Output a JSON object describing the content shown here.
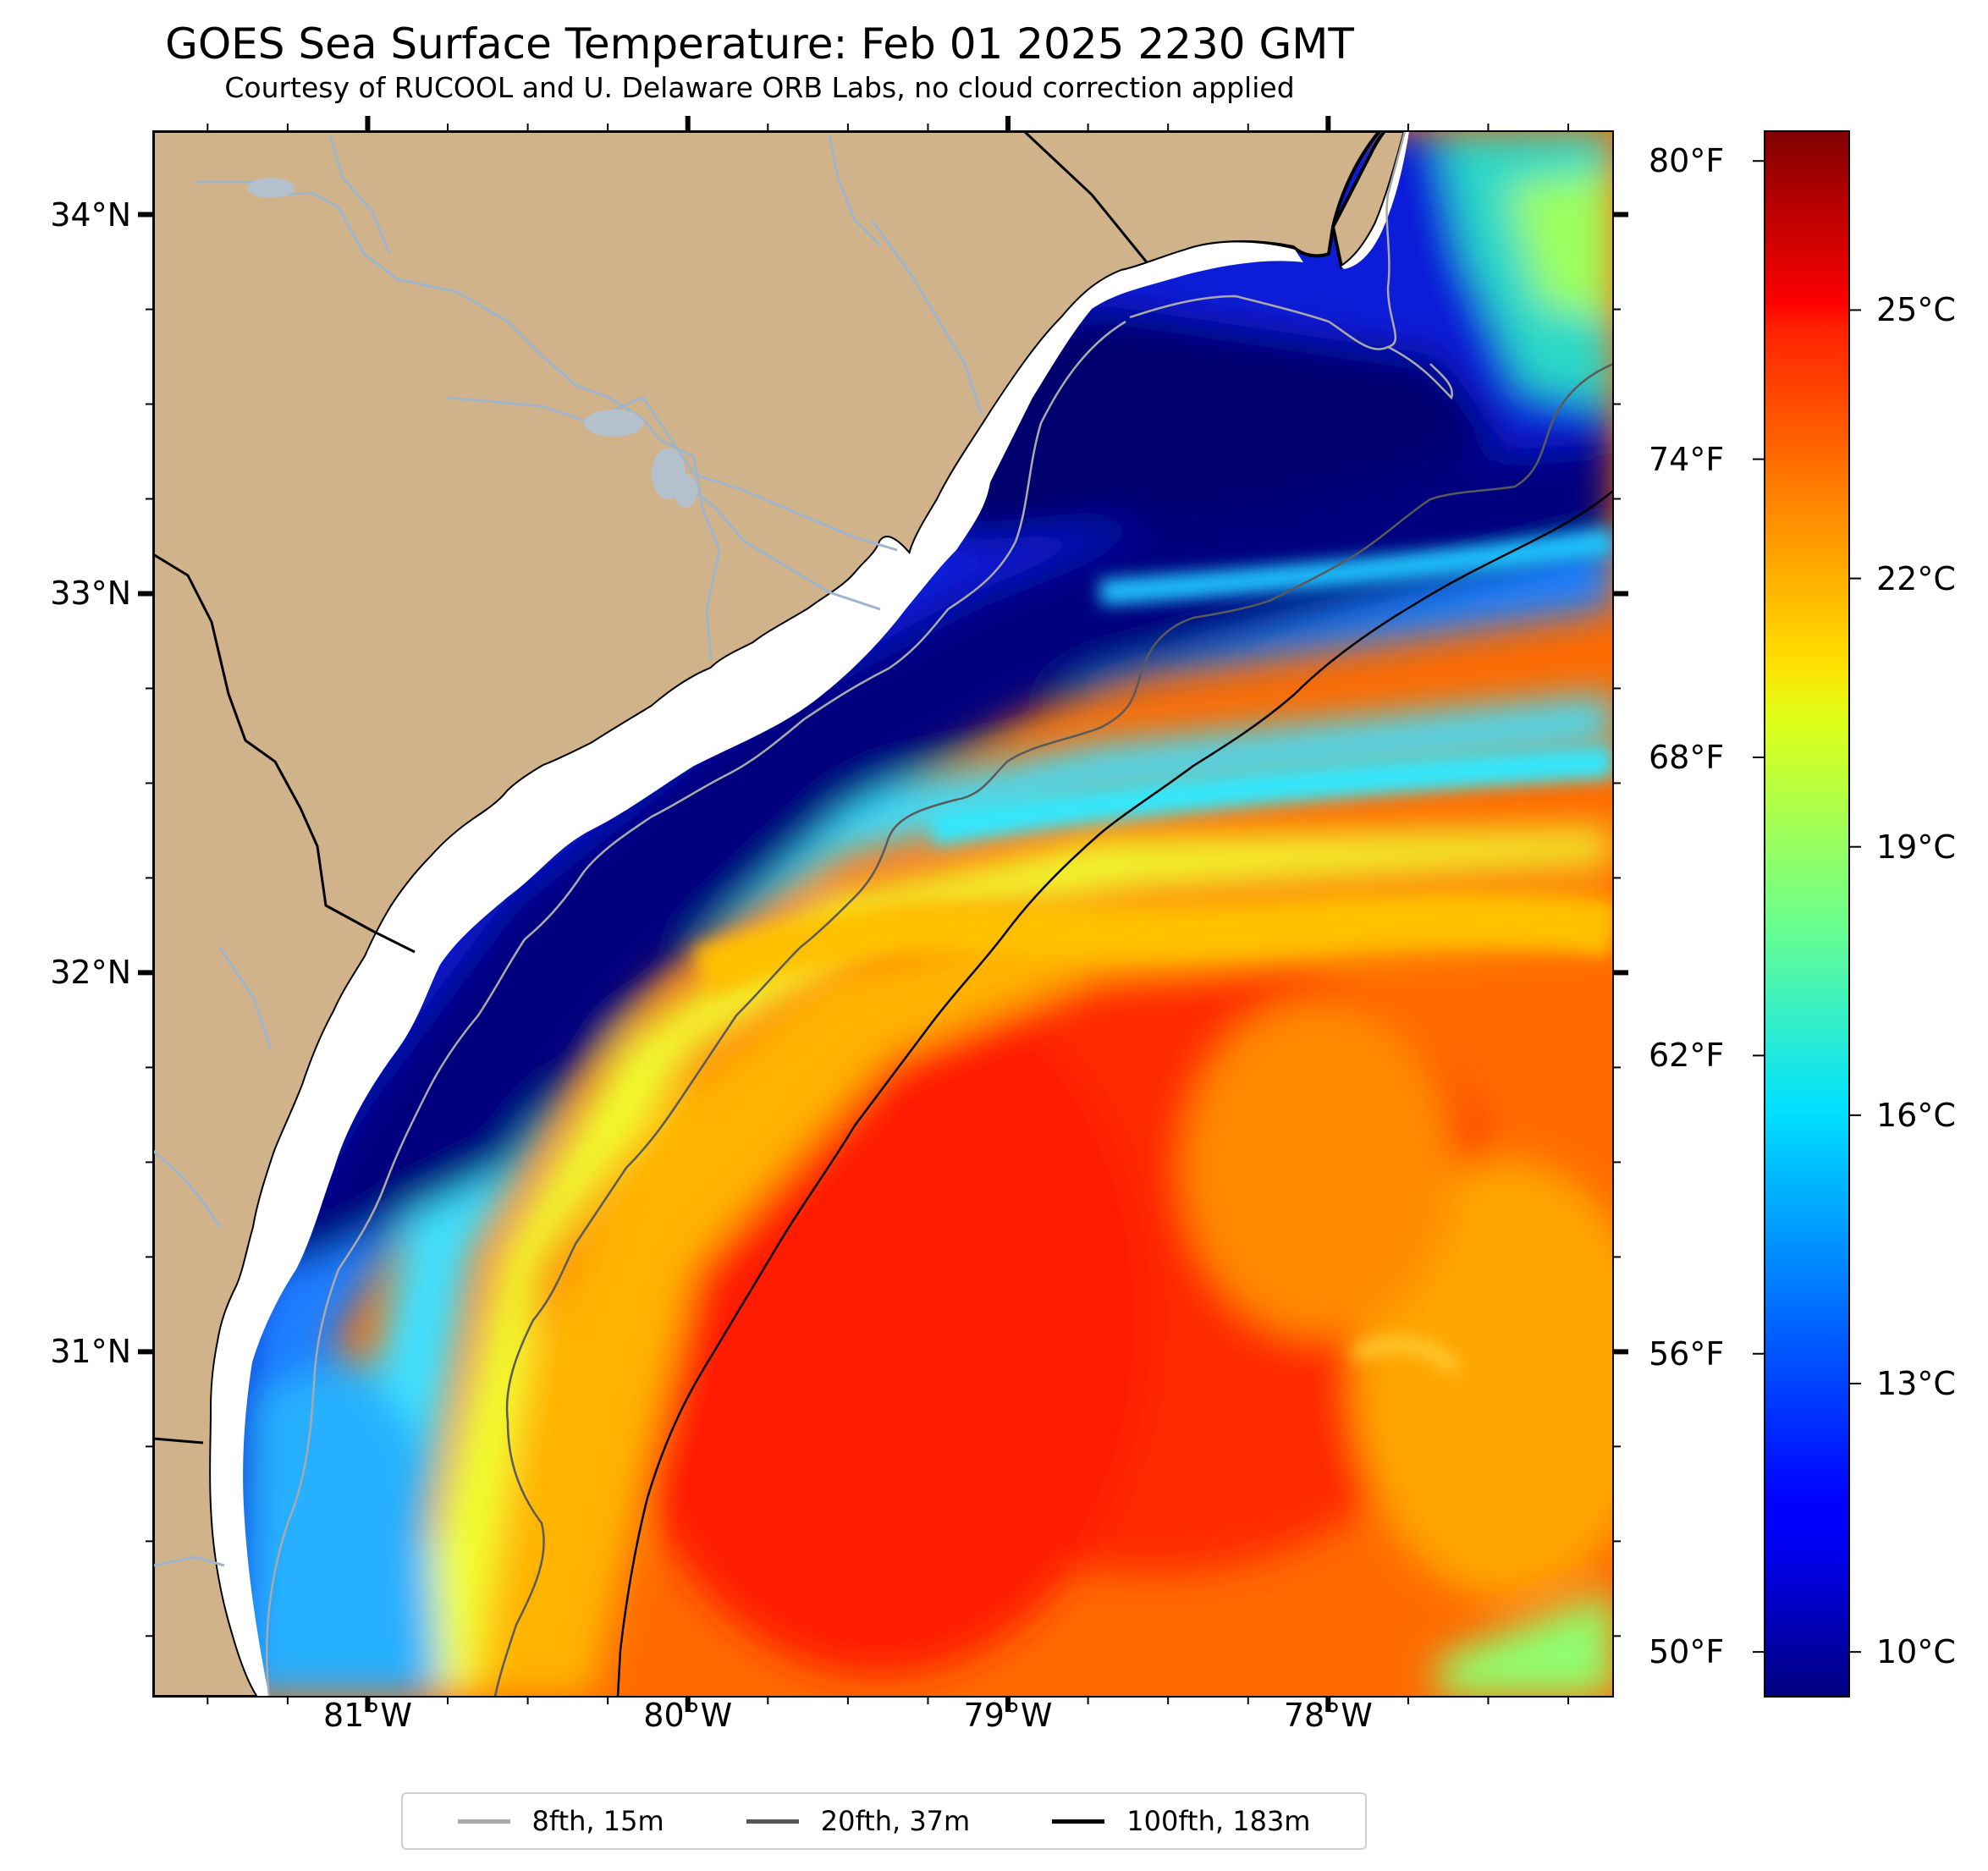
{
  "title": "GOES Sea Surface Temperature: Feb 01 2025 2230 GMT",
  "subtitle": "Courtesy of RUCOOL and U. Delaware ORB Labs, no cloud correction applied",
  "map": {
    "lon_range": [
      -81.67,
      -77.11
    ],
    "lat_range": [
      30.09,
      34.22
    ],
    "land_color": "#d1b38b",
    "river_color": "#9fb5cc",
    "coast_color": "#000000"
  },
  "lat_ticks": [
    {
      "value": 34,
      "label": "34°N"
    },
    {
      "value": 33,
      "label": "33°N"
    },
    {
      "value": 32,
      "label": "32°N"
    },
    {
      "value": 31,
      "label": "31°N"
    }
  ],
  "lon_ticks": [
    {
      "value": -81,
      "label": "81°W"
    },
    {
      "value": -80,
      "label": "80°W"
    },
    {
      "value": -79,
      "label": "79°W"
    },
    {
      "value": -78,
      "label": "78°W"
    }
  ],
  "colorbar": {
    "colormap": "jet",
    "range_c": [
      9.5,
      27.0
    ],
    "celsius_ticks": [
      {
        "value": 25,
        "label": "25°C"
      },
      {
        "value": 22,
        "label": "22°C"
      },
      {
        "value": 19,
        "label": "19°C"
      },
      {
        "value": 16,
        "label": "16°C"
      },
      {
        "value": 13,
        "label": "13°C"
      },
      {
        "value": 10,
        "label": "10°C"
      }
    ],
    "fahrenheit_ticks": [
      {
        "value": 80,
        "label": "80°F"
      },
      {
        "value": 74,
        "label": "74°F"
      },
      {
        "value": 68,
        "label": "68°F"
      },
      {
        "value": 62,
        "label": "62°F"
      },
      {
        "value": 56,
        "label": "56°F"
      },
      {
        "value": 50,
        "label": "50°F"
      }
    ]
  },
  "legend": {
    "placement": "bottom-center",
    "items": [
      {
        "label": "8fth, 15m",
        "color": "#aaaaaa"
      },
      {
        "label": "20fth, 37m",
        "color": "#555555"
      },
      {
        "label": "100fth, 183m",
        "color": "#000000"
      }
    ]
  }
}
